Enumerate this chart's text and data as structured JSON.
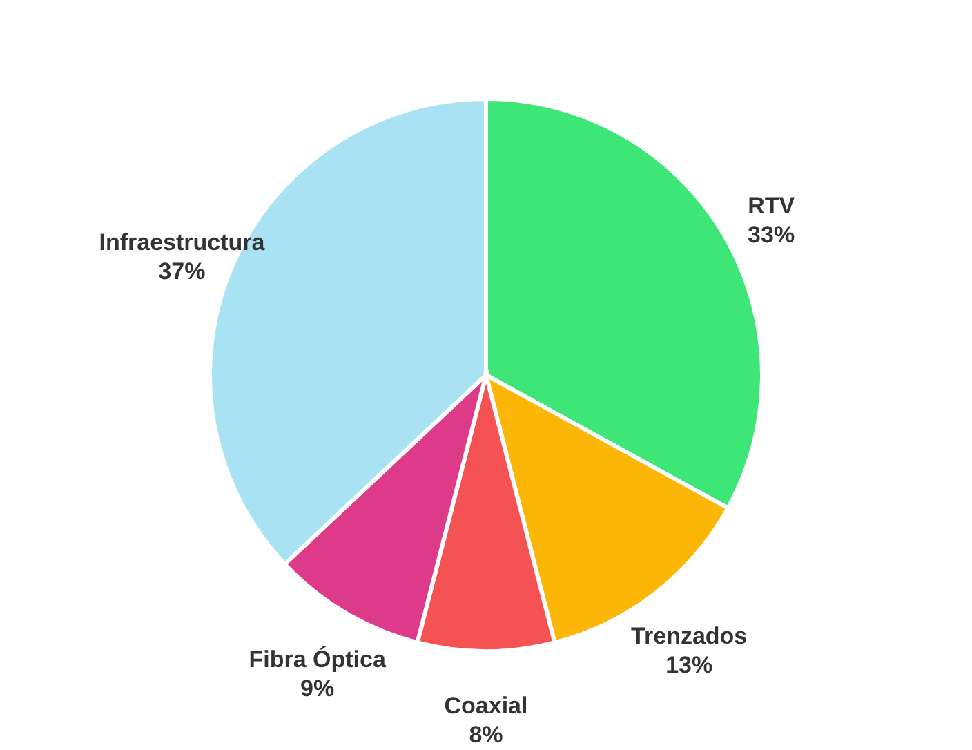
{
  "chart_data": {
    "type": "pie",
    "categories": [
      "RTV",
      "Trenzados",
      "Coaxial",
      "Fibra Óptica",
      "Infraestructura"
    ],
    "values": [
      33,
      13,
      8,
      9,
      37
    ],
    "value_labels": [
      "33%",
      "13%",
      "8%",
      "9%",
      "37%"
    ],
    "colors": [
      "#3ee577",
      "#fbb608",
      "#f55253",
      "#de3a8a",
      "#a9e3f3"
    ],
    "legend": false
  }
}
